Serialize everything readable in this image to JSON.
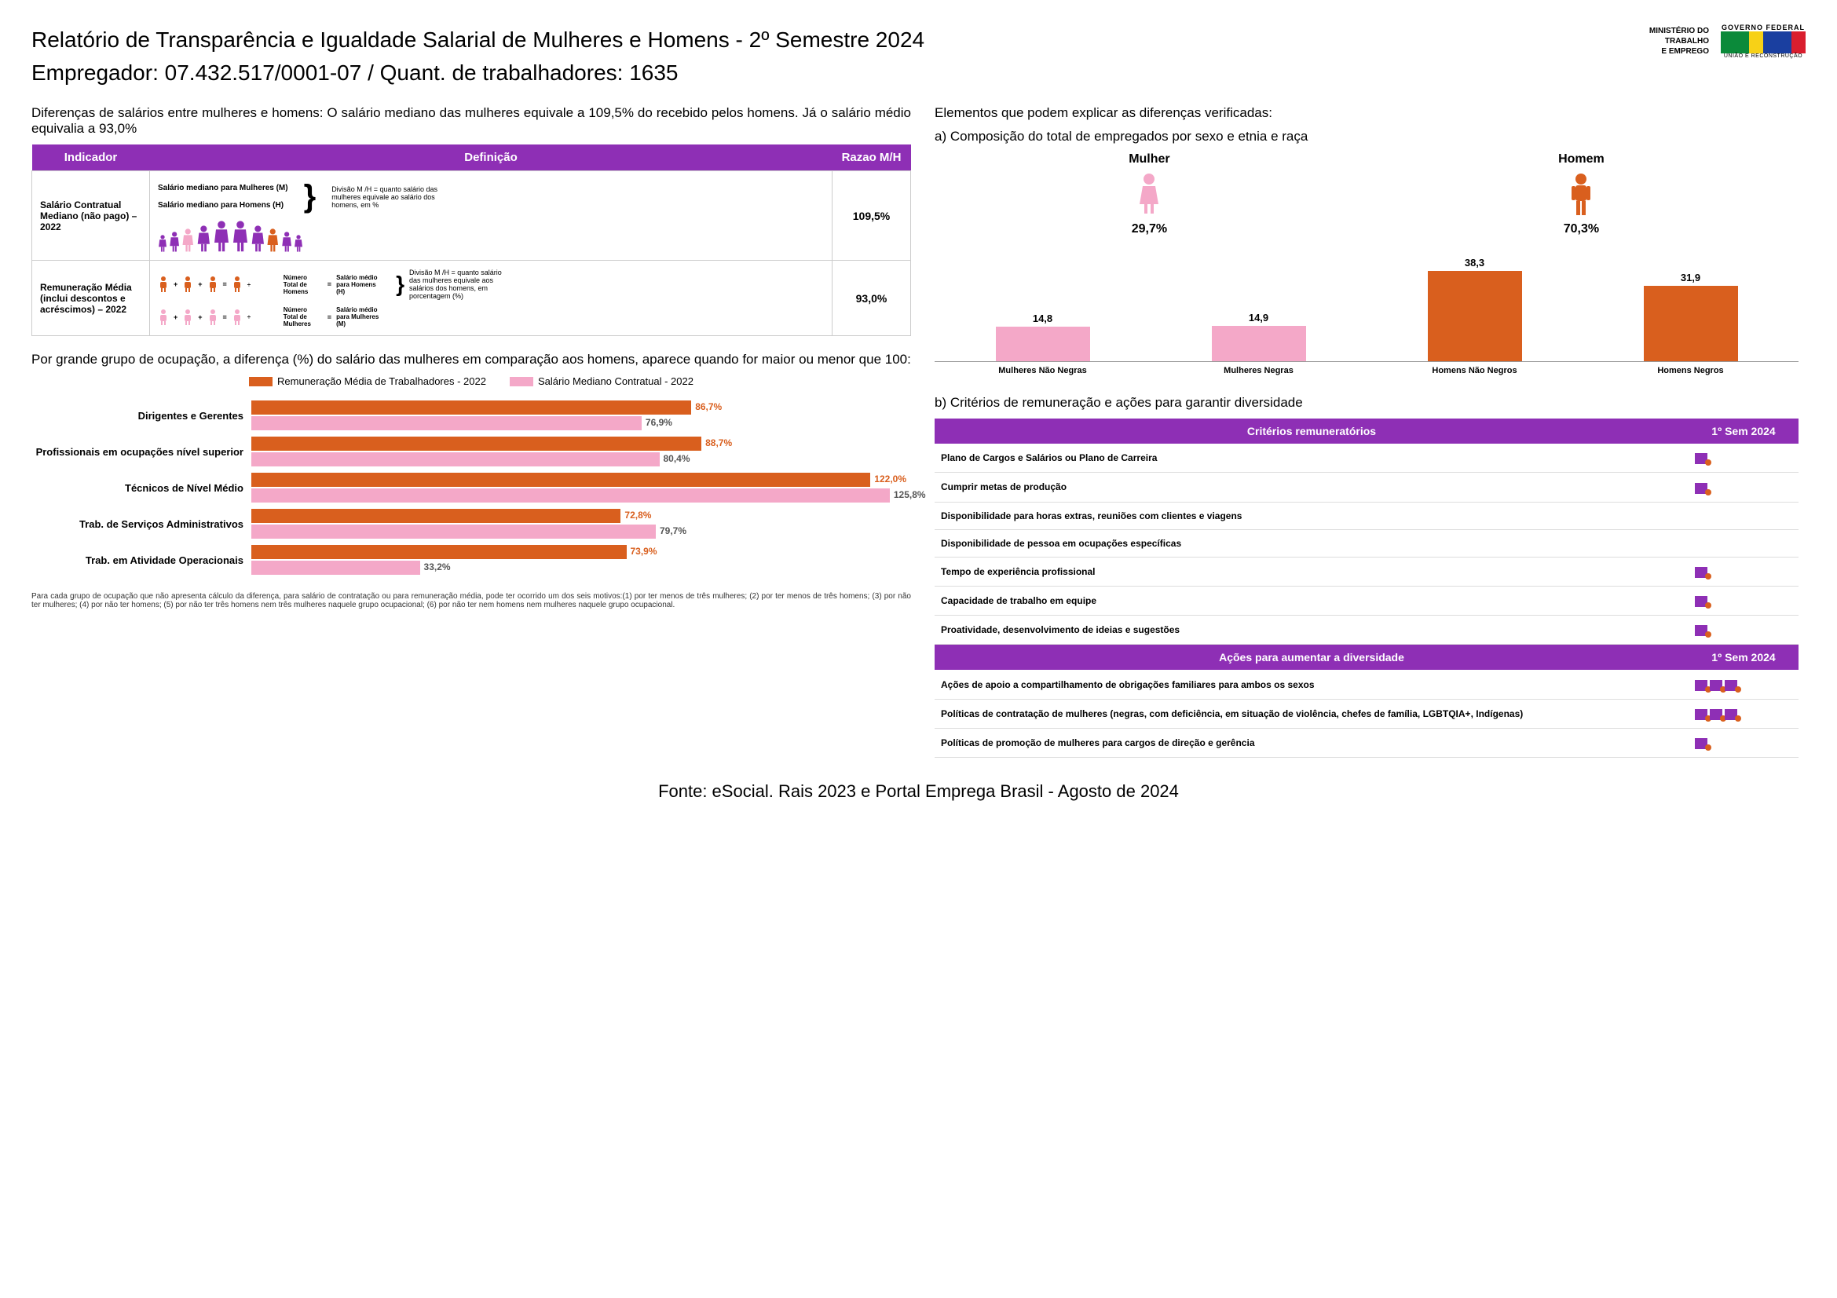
{
  "header": {
    "title": "Relatório de Transparência e Igualdade Salarial de Mulheres e Homens - 2º Semestre 2024",
    "employer_label": "Empregador: 07.432.517/0001-07    /    Quant. de trabalhadores: 1635",
    "ministry": "MINISTÉRIO DO\nTRABALHO\nE EMPREGO",
    "gov_top": "GOVERNO FEDERAL",
    "gov_bottom": "UNIÃO E RECONSTRUÇÃO"
  },
  "left": {
    "intro": "Diferenças de salários entre mulheres e homens: O salário mediano das mulheres equivale a 109,5% do recebido pelos homens. Já o salário médio equivalia a 93,0%",
    "table_headers": {
      "indicator": "Indicador",
      "definition": "Definição",
      "ratio": "Razao M/H"
    },
    "row1": {
      "indicator": "Salário Contratual Mediano (não pago) – 2022",
      "def_m": "Salário mediano para Mulheres (M)",
      "def_h": "Salário mediano para Homens (H)",
      "explain": "Divisão M /H = quanto salário das mulheres equivale ao salário dos homens, em %",
      "ratio": "109,5%"
    },
    "row2": {
      "indicator": "Remuneração Média (inclui descontos e acréscimos) – 2022",
      "num_h": "Número Total de Homens",
      "sal_h": "Salário médio para Homens (H)",
      "num_m": "Número Total de Mulheres",
      "sal_m": "Salário médio para Mulheres (M)",
      "explain": "Divisão M /H = quanto salário das mulheres equivale aos salários dos homens, em porcentagem (%)",
      "ratio": "93,0%"
    },
    "section2_text": "Por grande grupo de ocupação, a diferença (%) do salário das mulheres em comparação aos homens, aparece quando for maior ou menor que 100:",
    "legend": {
      "a": "Remuneração Média de Trabalhadores - 2022",
      "b": "Salário Mediano Contratual - 2022"
    },
    "hbars": [
      {
        "label": "Dirigentes e Gerentes",
        "v1": 86.7,
        "t1": "86,7%",
        "v2": 76.9,
        "t2": "76,9%"
      },
      {
        "label": "Profissionais em ocupações nível superior",
        "v1": 88.7,
        "t1": "88,7%",
        "v2": 80.4,
        "t2": "80,4%"
      },
      {
        "label": "Técnicos de Nível Médio",
        "v1": 122.0,
        "t1": "122,0%",
        "v2": 125.8,
        "t2": "125,8%"
      },
      {
        "label": "Trab. de Serviços Administrativos",
        "v1": 72.8,
        "t1": "72,8%",
        "v2": 79.7,
        "t2": "79,7%"
      },
      {
        "label": "Trab. em Atividade Operacionais",
        "v1": 73.9,
        "t1": "73,9%",
        "v2": 33.2,
        "t2": "33,2%"
      }
    ],
    "hbar_max": 130,
    "colors": {
      "orange": "#d95f1e",
      "pink": "#f4a8c8"
    },
    "footnote": "Para cada grupo de ocupação que não apresenta cálculo da diferença, para salário de contratação ou para remuneração média, pode ter ocorrido um dos seis motivos:(1) por ter menos de três mulheres; (2) por ter menos de três homens; (3) por não ter mulheres; (4) por não ter homens; (5) por não ter três homens nem três mulheres naquele grupo ocupacional; (6) por não ter nem homens nem mulheres naquele grupo ocupacional."
  },
  "right": {
    "intro": "Elementos que podem explicar as diferenças verificadas:",
    "sec_a": "a) Composição do total de empregados por sexo e etnia e raça",
    "mulher_label": "Mulher",
    "mulher_pct": "29,7%",
    "homem_label": "Homem",
    "homem_pct": "70,3%",
    "vbars": [
      {
        "label": "Mulheres Não Negras",
        "val": 14.8,
        "txt": "14,8",
        "color": "#f4a8c8"
      },
      {
        "label": "Mulheres Negras",
        "val": 14.9,
        "txt": "14,9",
        "color": "#f4a8c8"
      },
      {
        "label": "Homens Não Negros",
        "val": 38.3,
        "txt": "38,3",
        "color": "#d95f1e"
      },
      {
        "label": "Homens Negros",
        "val": 31.9,
        "txt": "31,9",
        "color": "#d95f1e"
      }
    ],
    "vbar_max": 40,
    "sec_b": "b) Critérios de remuneração e ações para garantir diversidade",
    "table1_h1": "Critérios remuneratórios",
    "table1_h2": "1º Sem 2024",
    "criteria": [
      {
        "label": "Plano de Cargos e Salários ou Plano de Carreira",
        "icons": 1
      },
      {
        "label": "Cumprir metas de produção",
        "icons": 1
      },
      {
        "label": "Disponibilidade para horas extras, reuniões com clientes e viagens",
        "icons": 0
      },
      {
        "label": "Disponibilidade de pessoa em ocupações específicas",
        "icons": 0
      },
      {
        "label": "Tempo de experiência profissional",
        "icons": 1
      },
      {
        "label": "Capacidade de trabalho em equipe",
        "icons": 1
      },
      {
        "label": "Proatividade, desenvolvimento de ideias e sugestões",
        "icons": 1
      }
    ],
    "table2_h1": "Ações para aumentar a diversidade",
    "table2_h2": "1º Sem 2024",
    "actions": [
      {
        "label": "Ações de apoio a compartilhamento de obrigações familiares para ambos os sexos",
        "icons": 3
      },
      {
        "label": "Políticas de contratação de mulheres (negras, com deficiência, em situação de violência, chefes de família, LGBTQIA+, Indígenas)",
        "icons": 3
      },
      {
        "label": "Políticas de promoção de mulheres para cargos de direção e gerência",
        "icons": 1
      }
    ]
  },
  "footer": "Fonte: eSocial. Rais 2023 e Portal Emprega Brasil - Agosto de 2024",
  "colors": {
    "purple": "#8e2fb5",
    "orange": "#d95f1e",
    "pink": "#f4a8c8",
    "darkpurple": "#6b1f8a"
  }
}
